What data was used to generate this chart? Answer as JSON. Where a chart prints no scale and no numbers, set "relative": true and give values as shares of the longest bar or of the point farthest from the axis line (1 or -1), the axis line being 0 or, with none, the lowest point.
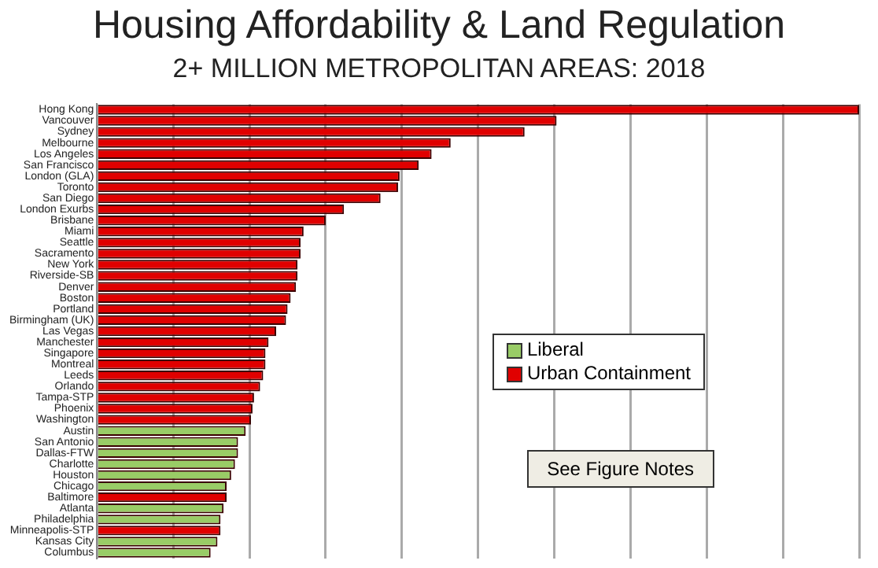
{
  "chart_data": {
    "type": "bar",
    "orientation": "horizontal",
    "stacked": true,
    "relative": true,
    "title": "Housing Affordability & Land Regulation",
    "subtitle": "2+ MILLION METROPOLITAN AREAS: 2018",
    "categories": [
      "Hong Kong",
      "Vancouver",
      "Sydney",
      "Melbourne",
      "Los Angeles",
      "San Francisco",
      "London (GLA)",
      "Toronto",
      "San Diego",
      "London Exurbs",
      "Brisbane",
      "Miami",
      "Seattle",
      "Sacramento",
      "New York",
      "Riverside-SB",
      "Denver",
      "Boston",
      "Portland",
      "Birmingham (UK)",
      "Las Vegas",
      "Manchester",
      "Singapore",
      "Montreal",
      "Leeds",
      "Orlando",
      "Tampa-STP",
      "Phoenix",
      "Washington",
      "Austin",
      "San Antonio",
      "Dallas-FTW",
      "Charlotte",
      "Houston",
      "Chicago",
      "Baltimore",
      "Atlanta",
      "Philadelphia",
      "Minneapolis-STP",
      "Kansas City",
      "Columbus"
    ],
    "series": [
      {
        "name": "Liberal",
        "color": "#99cc66",
        "values": [
          null,
          null,
          null,
          null,
          null,
          null,
          null,
          null,
          null,
          null,
          null,
          null,
          null,
          null,
          null,
          null,
          null,
          null,
          null,
          null,
          null,
          null,
          null,
          null,
          null,
          null,
          null,
          null,
          null,
          0.195,
          0.185,
          0.185,
          0.181,
          0.176,
          0.17,
          null,
          0.166,
          0.162,
          null,
          0.158,
          0.149
        ]
      },
      {
        "name": "Urban Containment",
        "color": "#e00000",
        "values": [
          1,
          0.603,
          0.561,
          0.464,
          0.439,
          0.422,
          0.397,
          0.395,
          0.372,
          0.324,
          0.3,
          0.271,
          0.267,
          0.267,
          0.263,
          0.263,
          0.261,
          0.254,
          0.25,
          0.248,
          0.235,
          0.225,
          0.221,
          0.221,
          0.218,
          0.214,
          0.206,
          0.204,
          0.202,
          null,
          null,
          null,
          null,
          null,
          null,
          0.17,
          null,
          null,
          0.162,
          null,
          null
        ]
      }
    ],
    "grid": "x",
    "legend": "right",
    "annotations": [
      "See Figure Notes"
    ]
  }
}
